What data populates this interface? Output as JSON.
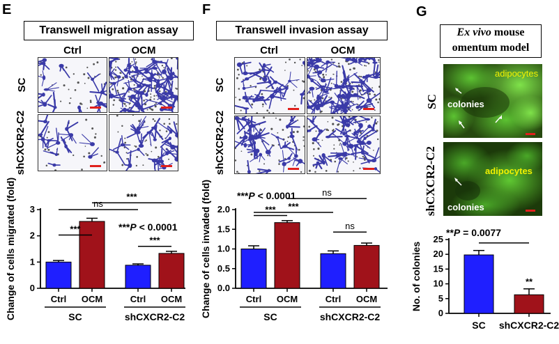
{
  "panel_e": {
    "letter": "E",
    "title": "Transwell migration assay",
    "columns": [
      "Ctrl",
      "OCM"
    ],
    "rows": [
      "SC",
      "shCXCR2-C2"
    ],
    "chart_data": {
      "type": "bar",
      "ylabel": "Change of cells migrated (fold)",
      "ylim": [
        0,
        3
      ],
      "yticks": [
        "0",
        "1",
        "2",
        "3"
      ],
      "categories": [
        "Ctrl",
        "OCM",
        "Ctrl",
        "OCM"
      ],
      "groups": [
        "SC",
        "shCXCR2-C2"
      ],
      "values": [
        1.0,
        2.55,
        0.88,
        1.33
      ],
      "errors": [
        0.06,
        0.12,
        0.05,
        0.08
      ],
      "bar_colors": [
        "#1f1fff",
        "#a0121a",
        "#1f1fff",
        "#a0121a"
      ],
      "annotations": [
        "***",
        "***",
        "ns",
        "***",
        "***P < 0.0001"
      ]
    }
  },
  "panel_f": {
    "letter": "F",
    "title": "Transwell invasion assay",
    "columns": [
      "Ctrl",
      "OCM"
    ],
    "rows": [
      "SC",
      "shCXCR2-C2"
    ],
    "chart_data": {
      "type": "bar",
      "ylabel": "Change of cells invaded (fold)",
      "ylim": [
        0,
        2.0
      ],
      "yticks": [
        "0.0",
        "0.5",
        "1.0",
        "1.5",
        "2.0"
      ],
      "categories": [
        "Ctrl",
        "OCM",
        "Ctrl",
        "OCM"
      ],
      "groups": [
        "SC",
        "shCXCR2-C2"
      ],
      "values": [
        1.0,
        1.67,
        0.88,
        1.09
      ],
      "errors": [
        0.08,
        0.05,
        0.07,
        0.06
      ],
      "bar_colors": [
        "#1f1fff",
        "#a0121a",
        "#1f1fff",
        "#a0121a"
      ],
      "annotations": [
        "***",
        "ns",
        "***",
        "ns",
        "***P < 0.0001"
      ]
    }
  },
  "panel_g": {
    "letter": "G",
    "title_italic": "Ex vivo",
    "title_rest": " mouse",
    "title_line2": "omentum model",
    "rows": [
      "SC",
      "shCXCR2-C2"
    ],
    "img_labels": {
      "adipocytes": "adipocytes",
      "colonies": "colonies"
    },
    "chart_data": {
      "type": "bar",
      "ylabel": "No. of colonies",
      "ylim": [
        0,
        25
      ],
      "yticks": [
        "0",
        "5",
        "10",
        "15",
        "20",
        "25"
      ],
      "categories": [
        "SC",
        "shCXCR2-C2"
      ],
      "values": [
        19.8,
        6.3
      ],
      "errors": [
        1.5,
        2.0
      ],
      "bar_colors": [
        "#1f1fff",
        "#a0121a"
      ],
      "annotations": [
        "**",
        "**P = 0.0077"
      ]
    }
  },
  "colors": {
    "blue_bar": "#1f1fff",
    "red_bar": "#a0121a",
    "stain": "#3a3aa8",
    "scale_bar": "#e0201c",
    "fluor_bg": "#1c3a0a",
    "fluor_bright": "#6fdc3a",
    "adipocyte_text": "#f2f200"
  }
}
